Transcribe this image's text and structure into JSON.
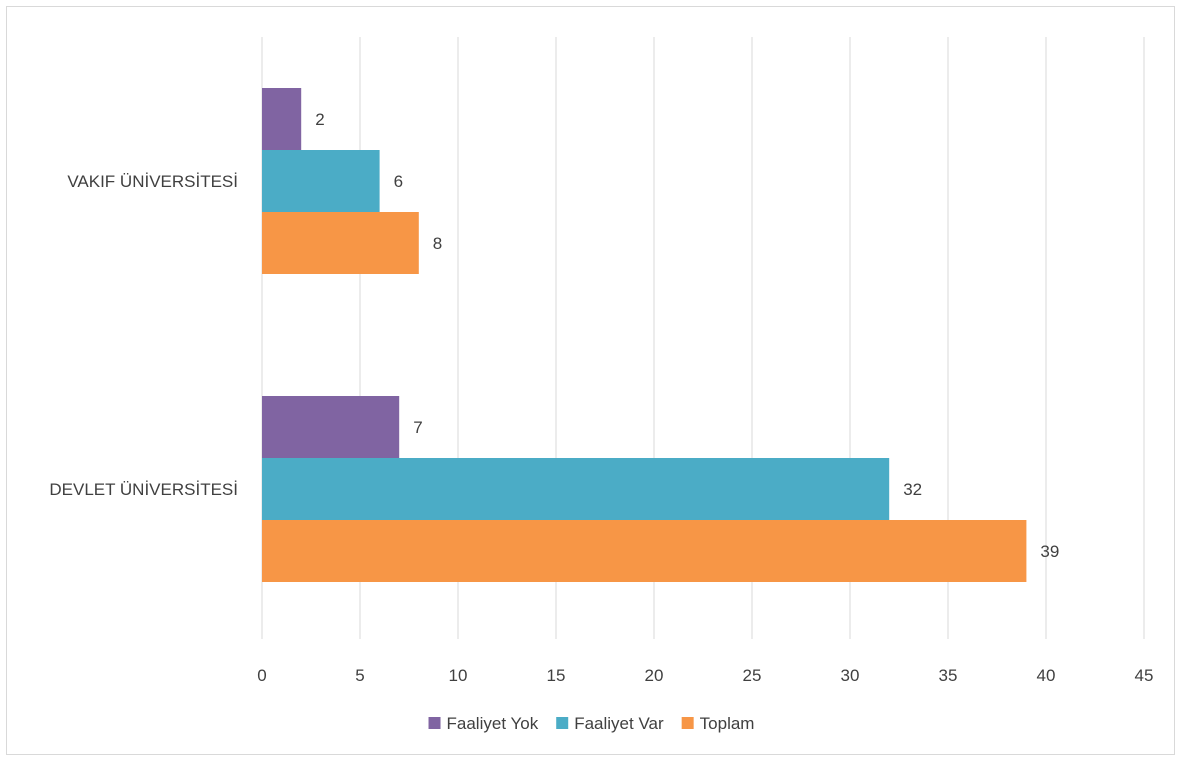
{
  "chart_data": {
    "type": "bar",
    "orientation": "horizontal",
    "categories": [
      "VAKIF ÜNİVERSİTESİ",
      "DEVLET ÜNİVERSİTESİ"
    ],
    "series": [
      {
        "name": "Faaliyet Yok",
        "color": "#8064a2",
        "values": [
          2,
          7
        ]
      },
      {
        "name": "Faaliyet Var",
        "color": "#4bacc6",
        "values": [
          6,
          32
        ]
      },
      {
        "name": "Toplam",
        "color": "#f79646",
        "values": [
          8,
          39
        ]
      }
    ],
    "xlim": [
      0,
      45
    ],
    "xticks": [
      "0",
      "5",
      "10",
      "15",
      "20",
      "25",
      "30",
      "35",
      "40",
      "45"
    ],
    "grid": true,
    "legend_position": "bottom",
    "data_labels": true
  }
}
